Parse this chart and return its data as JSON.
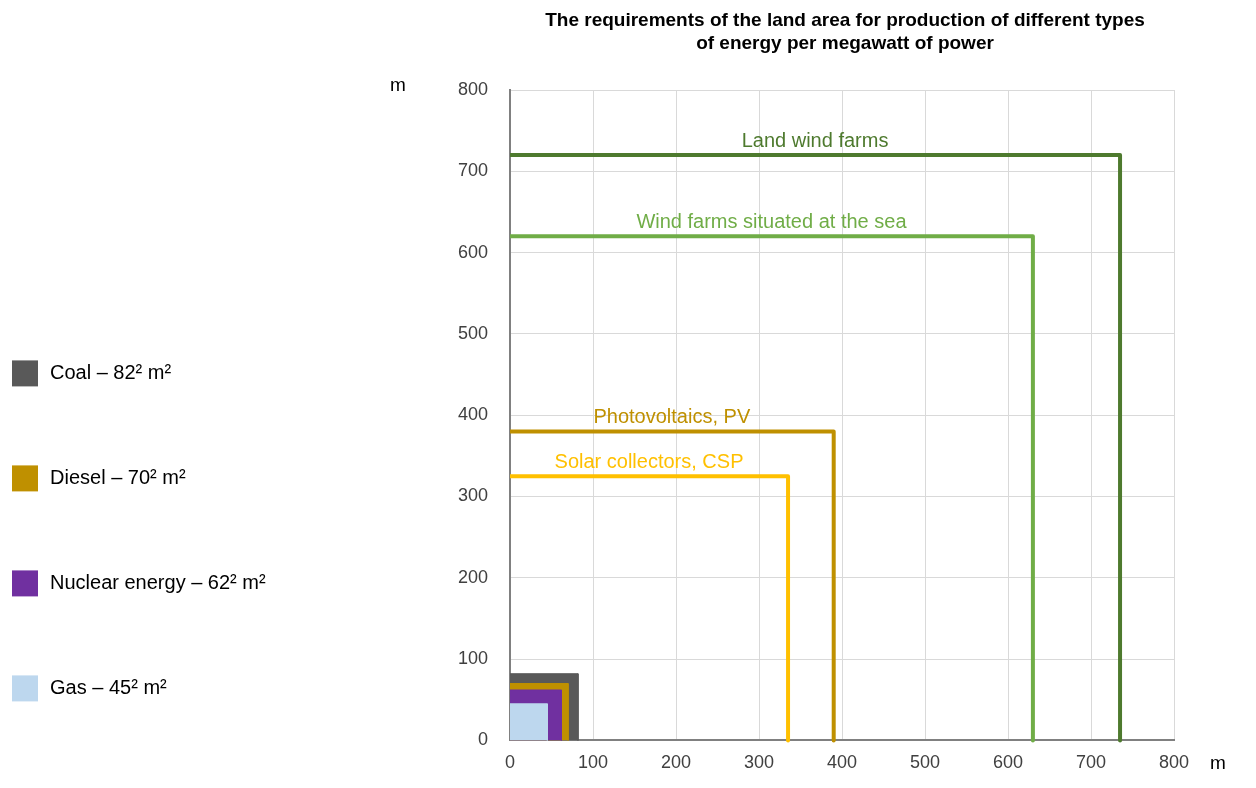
{
  "chart_data": {
    "type": "line",
    "title": "The requirements of the land area for production of different types of energy per megawatt of power",
    "xlabel": "m",
    "ylabel": "m",
    "xlim": [
      0,
      800
    ],
    "ylim": [
      0,
      800
    ],
    "xticks": [
      0,
      100,
      200,
      300,
      400,
      500,
      600,
      700,
      800
    ],
    "yticks": [
      0,
      100,
      200,
      300,
      400,
      500,
      600,
      700,
      800
    ],
    "grid": true,
    "legend": "left",
    "series": [
      {
        "name": "Wind farms situated at the sea",
        "type": "line",
        "color": "#70ad47",
        "x": [
          0,
          630,
          630
        ],
        "values": [
          620,
          620,
          0
        ]
      },
      {
        "name": "Photovoltaics, PV",
        "type": "line",
        "color": "#bf9000",
        "x": [
          0,
          390,
          390
        ],
        "values": [
          380,
          380,
          0
        ]
      },
      {
        "name": "Solar collectors, CSP",
        "type": "line",
        "color": "#ffc000",
        "x": [
          0,
          335,
          335
        ],
        "values": [
          325,
          325,
          0
        ]
      },
      {
        "name": "Land wind farms",
        "type": "line",
        "color": "#4e7a2e",
        "x": [
          0,
          735,
          735
        ],
        "values": [
          720,
          720,
          0
        ]
      },
      {
        "name": "Coal – 82² m²",
        "type": "area",
        "color": "#595959",
        "x": [
          0,
          82,
          82
        ],
        "values": [
          82,
          82,
          0
        ]
      },
      {
        "name": "Diesel – 70² m²",
        "type": "area",
        "color": "#bf9000",
        "x": [
          0,
          70,
          70
        ],
        "values": [
          70,
          70,
          0
        ]
      },
      {
        "name": "Nuclear energy – 62² m²",
        "type": "area",
        "color": "#7030a0",
        "x": [
          0,
          62,
          62
        ],
        "values": [
          62,
          62,
          0
        ]
      },
      {
        "name": "Gas – 45² m²",
        "type": "area",
        "color": "#bdd7ee",
        "x": [
          0,
          45,
          45
        ],
        "values": [
          45,
          45,
          0
        ]
      }
    ]
  }
}
